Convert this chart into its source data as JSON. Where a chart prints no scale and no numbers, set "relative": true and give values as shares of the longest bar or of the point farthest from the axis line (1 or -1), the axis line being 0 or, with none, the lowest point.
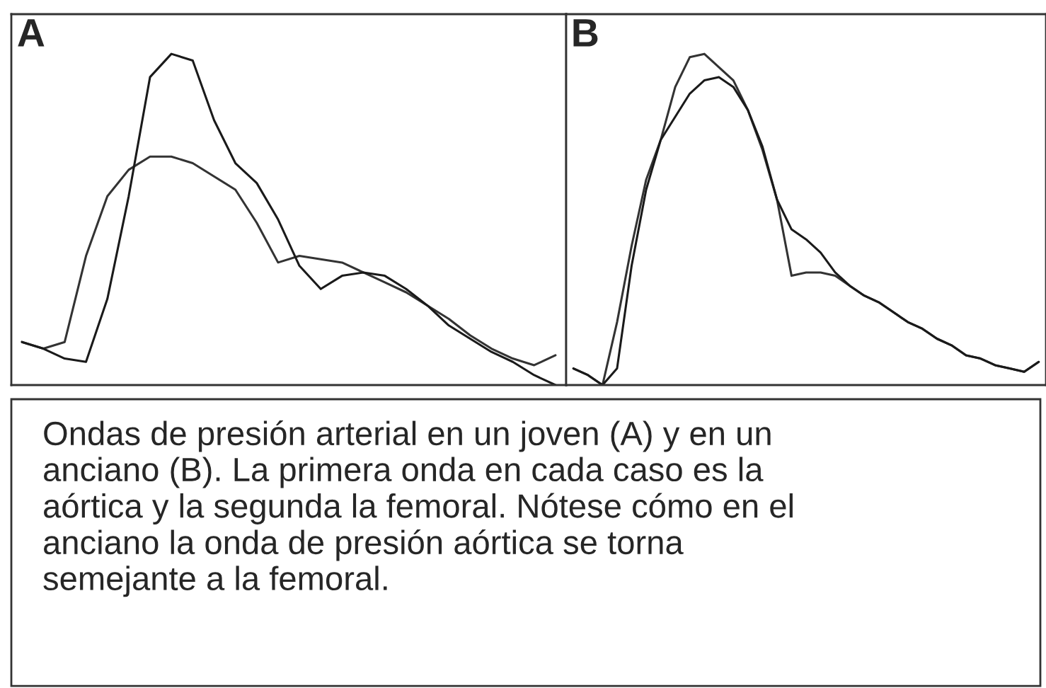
{
  "chart_data": [
    {
      "type": "line",
      "title": "A",
      "relative": true,
      "categories": [
        null,
        null,
        null,
        null,
        null,
        null,
        null,
        null,
        null,
        null,
        null,
        null,
        null,
        null,
        null,
        null,
        null,
        null,
        null,
        null,
        null,
        null,
        null,
        null,
        null,
        null
      ],
      "series": [
        {
          "color": "#333333",
          "values": [
            0.13,
            0.11,
            0.13,
            0.39,
            0.57,
            0.65,
            0.69,
            0.69,
            0.67,
            0.63,
            0.59,
            0.49,
            0.37,
            0.39,
            0.38,
            0.37,
            0.34,
            0.31,
            0.28,
            0.24,
            0.2,
            0.15,
            0.11,
            0.08,
            0.06,
            0.09
          ]
        },
        {
          "color": "#1a1a1a",
          "values": [
            0.13,
            0.11,
            0.08,
            0.07,
            0.26,
            0.57,
            0.93,
            1.0,
            0.98,
            0.8,
            0.67,
            0.61,
            0.5,
            0.36,
            0.29,
            0.33,
            0.34,
            0.33,
            0.29,
            0.24,
            0.18,
            0.14,
            0.1,
            0.07,
            0.03,
            0.0
          ]
        }
      ],
      "annotations": [
        "Ondas de presión arterial en un joven (A) y en un\nanciano (B). La primera onda en cada caso es la\naórtica y la segunda la femoral. Nótese cómo en el\nanciano la onda de presión aórtica se torna\nsemejante a la femoral."
      ]
    },
    {
      "type": "line",
      "title": "B",
      "relative": true,
      "categories": [
        null,
        null,
        null,
        null,
        null,
        null,
        null,
        null,
        null,
        null,
        null,
        null,
        null,
        null,
        null,
        null,
        null,
        null,
        null,
        null,
        null,
        null,
        null,
        null,
        null,
        null,
        null,
        null,
        null,
        null,
        null,
        null,
        null
      ],
      "series": [
        {
          "color": "#333333",
          "values": [
            0.05,
            0.03,
            0.0,
            0.19,
            0.42,
            0.62,
            0.74,
            0.9,
            0.99,
            1.0,
            0.96,
            0.92,
            0.83,
            0.71,
            0.56,
            0.33,
            0.34,
            0.34,
            0.33,
            0.3,
            0.27,
            0.25,
            0.22,
            0.19,
            0.17,
            0.14,
            0.12,
            0.09,
            0.08,
            0.06,
            0.05,
            0.04,
            0.07
          ]
        },
        {
          "color": "#1a1a1a",
          "values": [
            0.05,
            0.03,
            0.0,
            0.05,
            0.36,
            0.59,
            0.74,
            0.81,
            0.88,
            0.92,
            0.93,
            0.9,
            0.83,
            0.72,
            0.56,
            0.47,
            0.44,
            0.4,
            0.34,
            0.3,
            0.27,
            0.25,
            0.22,
            0.19,
            0.17,
            0.14,
            0.12,
            0.09,
            0.08,
            0.06,
            0.05,
            0.04,
            0.07
          ]
        }
      ]
    }
  ]
}
